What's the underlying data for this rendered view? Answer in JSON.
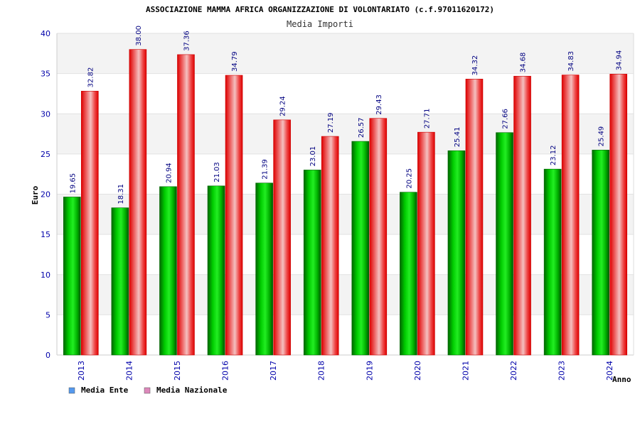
{
  "chart_data": {
    "type": "bar",
    "title": "ASSOCIAZIONE MAMMA AFRICA ORGANIZZAZIONE DI VOLONTARIATO (c.f.97011620172)",
    "subtitle": "Media Importi",
    "ylabel": "Euro",
    "xlabel": "Anno",
    "ylim": [
      0,
      40
    ],
    "yticks": [
      "0",
      "5",
      "10",
      "15",
      "20",
      "25",
      "30",
      "35",
      "40"
    ],
    "categories": [
      "2013",
      "2014",
      "2015",
      "2016",
      "2017",
      "2018",
      "2019",
      "2020",
      "2021",
      "2022",
      "2023",
      "2024"
    ],
    "series": [
      {
        "name": "Media Ente",
        "values": [
          19.65,
          18.31,
          20.94,
          21.03,
          21.39,
          23.01,
          26.57,
          20.25,
          25.41,
          27.66,
          23.12,
          25.49
        ],
        "labels": [
          "19.65",
          "18.31",
          "20.94",
          "21.03",
          "21.39",
          "23.01",
          "26.57",
          "20.25",
          "25.41",
          "27.66",
          "23.12",
          "25.49"
        ],
        "color": "#00bb00"
      },
      {
        "name": "Media Nazionale",
        "values": [
          32.82,
          38.0,
          37.36,
          34.79,
          29.24,
          27.19,
          29.43,
          27.71,
          34.32,
          34.68,
          34.83,
          34.94
        ],
        "labels": [
          "32.82",
          "38.00",
          "37.36",
          "34.79",
          "29.24",
          "27.19",
          "29.43",
          "27.71",
          "34.32",
          "34.68",
          "34.83",
          "34.94"
        ],
        "color": "#ee0000"
      }
    ],
    "legend": {
      "placement": "bottom-left",
      "items": [
        {
          "label": "Media Ente",
          "color": "#5599ee"
        },
        {
          "label": "Media Nazionale",
          "color": "#dd88bb"
        }
      ]
    },
    "grid": true,
    "colors": {
      "band_light": "#f3f3f3",
      "band_white": "#ffffff",
      "tick_text": "#0000aa",
      "data_label": "#000080"
    }
  }
}
